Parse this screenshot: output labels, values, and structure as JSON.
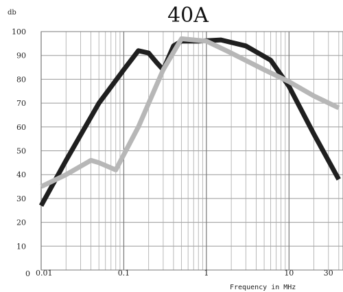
{
  "chart_data": {
    "type": "line",
    "title": "40A",
    "ylabel": "db",
    "xlabel": "Frequency  in  MHz",
    "x_scale": "log",
    "xlim": [
      0.01,
      45
    ],
    "ylim": [
      0,
      100
    ],
    "grid": true,
    "x_tick_labels": [
      {
        "value": 0.01,
        "label": "0.01"
      },
      {
        "value": 0.1,
        "label": "0.1"
      },
      {
        "value": 1,
        "label": "1"
      },
      {
        "value": 10,
        "label": "10"
      },
      {
        "value": 30,
        "label": "30"
      }
    ],
    "y_zero_label": "0",
    "y_tick_labels": [
      {
        "value": 10,
        "label": "10"
      },
      {
        "value": 20,
        "label": "20"
      },
      {
        "value": 30,
        "label": "30"
      },
      {
        "value": 40,
        "label": "40"
      },
      {
        "value": 50,
        "label": "50"
      },
      {
        "value": 60,
        "label": "60"
      },
      {
        "value": 70,
        "label": "70"
      },
      {
        "value": 80,
        "label": "80"
      },
      {
        "value": 90,
        "label": "90"
      },
      {
        "value": 100,
        "label": "100"
      }
    ],
    "series": [
      {
        "color": "#1f1f1f",
        "points": [
          [
            0.01,
            27
          ],
          [
            0.02,
            46
          ],
          [
            0.05,
            70
          ],
          [
            0.1,
            84
          ],
          [
            0.15,
            92
          ],
          [
            0.2,
            91
          ],
          [
            0.25,
            87
          ],
          [
            0.3,
            84
          ],
          [
            0.4,
            94
          ],
          [
            0.5,
            96
          ],
          [
            0.8,
            96
          ],
          [
            1.5,
            96.5
          ],
          [
            3,
            94
          ],
          [
            6,
            88
          ],
          [
            10,
            77
          ],
          [
            20,
            57
          ],
          [
            40,
            38
          ]
        ]
      },
      {
        "color": "#b7b7b7",
        "points": [
          [
            0.01,
            35
          ],
          [
            0.02,
            40
          ],
          [
            0.04,
            46
          ],
          [
            0.05,
            45
          ],
          [
            0.08,
            42
          ],
          [
            0.15,
            60
          ],
          [
            0.3,
            84
          ],
          [
            0.5,
            97
          ],
          [
            1,
            96
          ],
          [
            2,
            91
          ],
          [
            5,
            84
          ],
          [
            10,
            79
          ],
          [
            20,
            73
          ],
          [
            40,
            68
          ]
        ]
      }
    ]
  }
}
